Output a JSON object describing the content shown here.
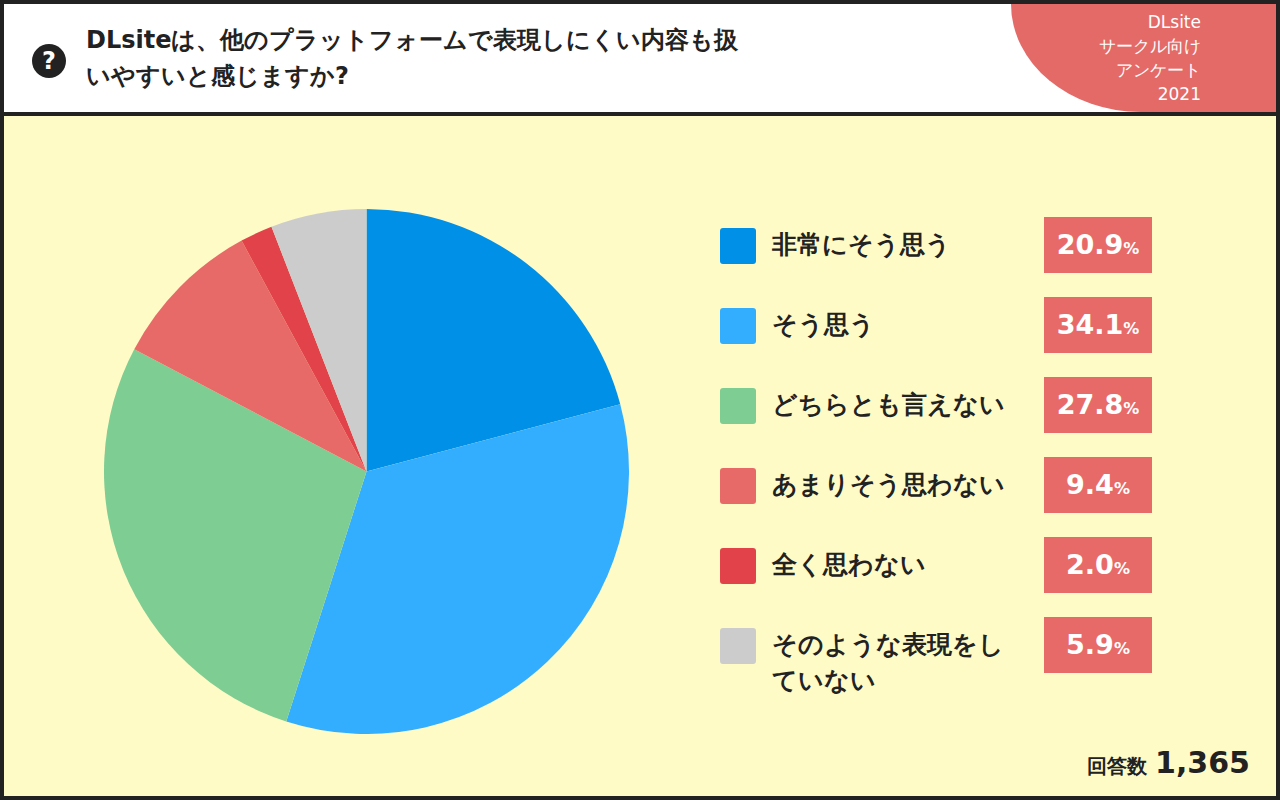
{
  "header": {
    "icon": "?",
    "question": "DLsiteは、他のプラットフォームで表現しにくい内容も扱いやすいと感じますか?",
    "badge": [
      "DLsite",
      "サークル向け",
      "アンケート",
      "2021"
    ]
  },
  "chart_data": {
    "type": "pie",
    "categories": [
      "非常にそう思う",
      "そう思う",
      "どちらとも言えない",
      "あまりそう思わない",
      "全く思わない",
      "そのような表現をしていない"
    ],
    "values": [
      20.9,
      34.1,
      27.8,
      9.4,
      2.0,
      5.9
    ],
    "value_labels": [
      "20.9%",
      "34.1%",
      "27.8%",
      "9.4%",
      "2.0%",
      "5.9%"
    ],
    "colors": [
      "#0090e8",
      "#33aeff",
      "#7ecd92",
      "#e86a68",
      "#e2434a",
      "#cccccc"
    ],
    "legend": "right"
  },
  "footer": {
    "label": "回答数",
    "count": "1,365"
  }
}
